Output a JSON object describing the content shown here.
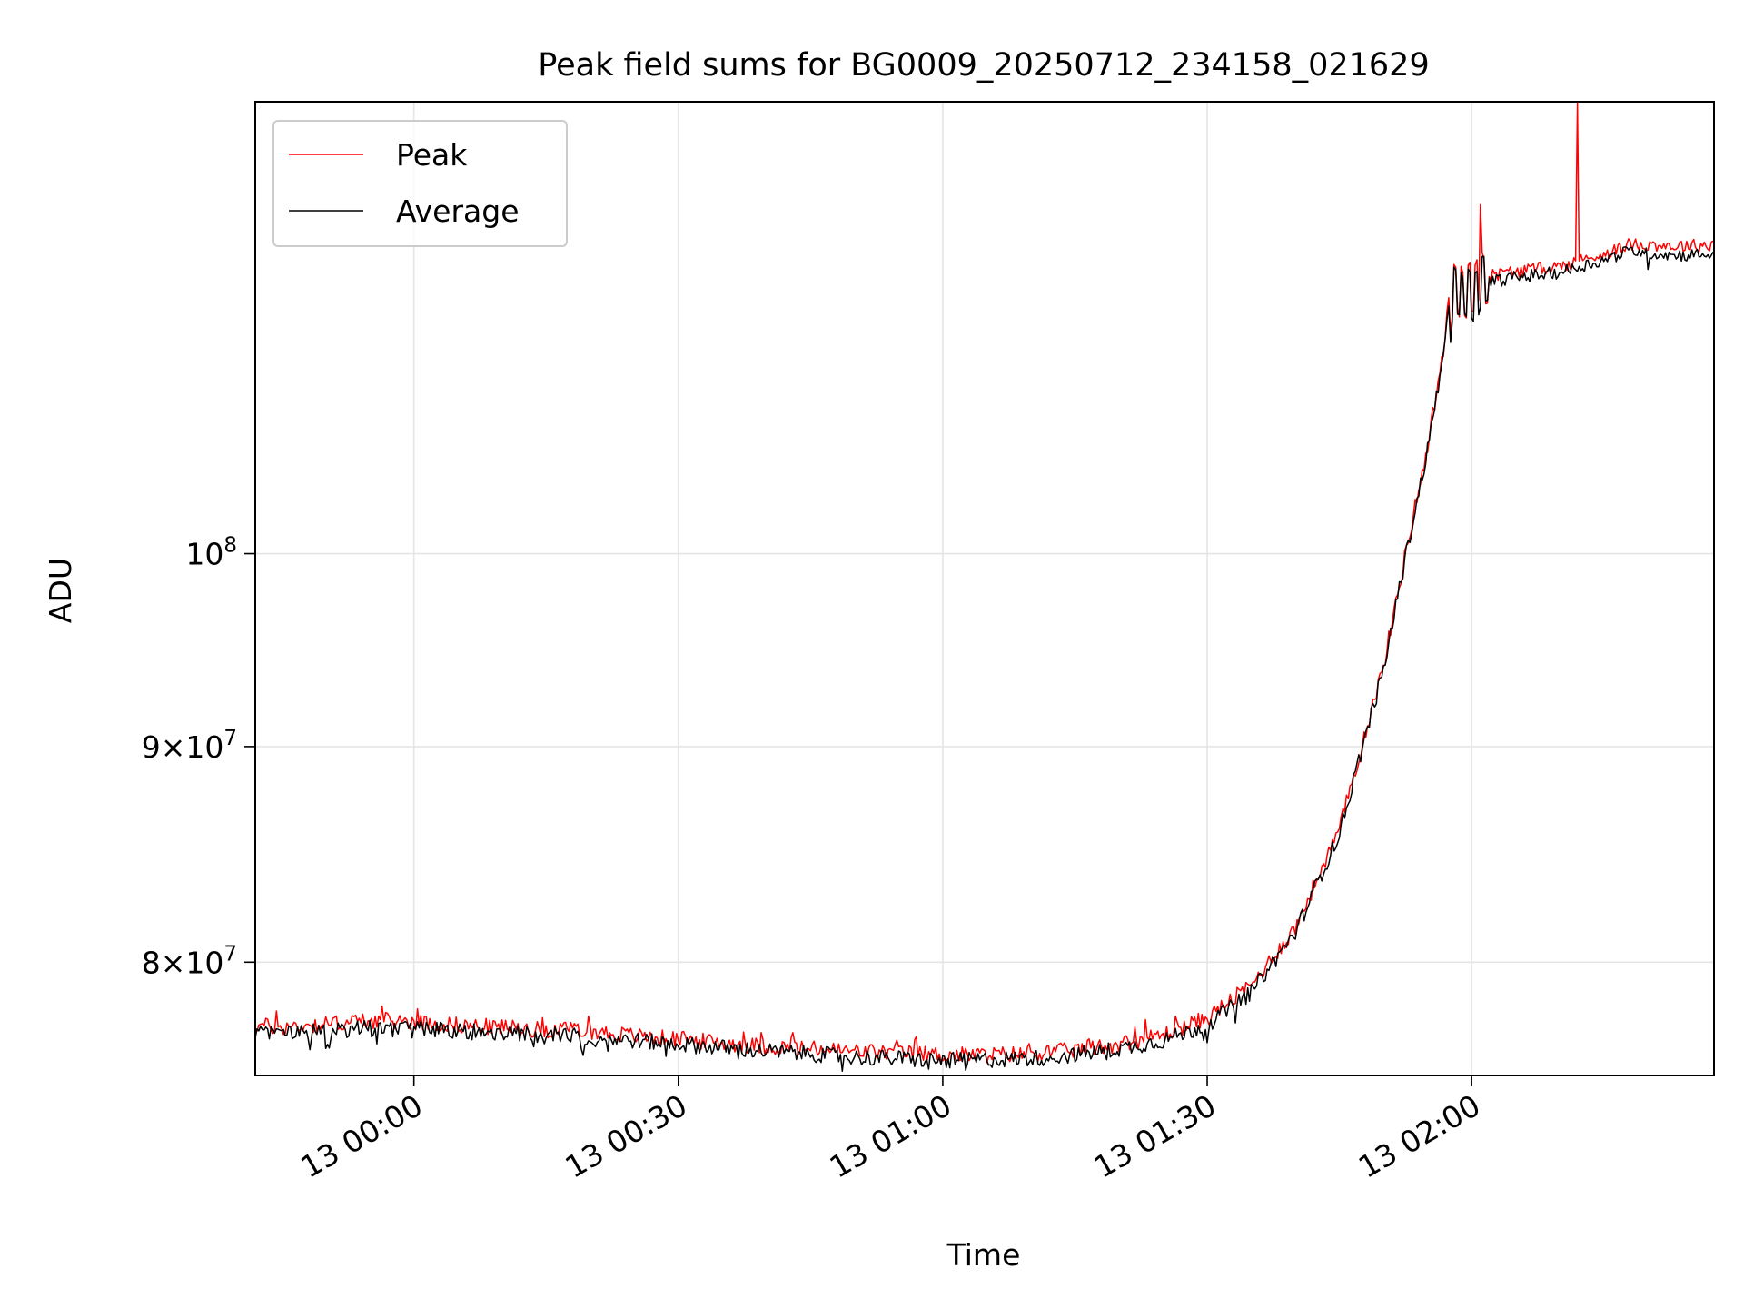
{
  "chart_data": {
    "type": "line",
    "title": "Peak field sums for BG0009_20250712_234158_021629",
    "xlabel": "Time",
    "ylabel": "ADU",
    "x_ticks": [
      "13 00:00",
      "13 00:30",
      "13 01:00",
      "13 01:30",
      "13 02:00"
    ],
    "y_ticks": [
      {
        "value": 80000000,
        "mantissa": "8",
        "exp": "7"
      },
      {
        "value": 90000000,
        "mantissa": "9",
        "exp": "7"
      },
      {
        "value": 100000000,
        "mantissa": "",
        "exp": "8"
      }
    ],
    "y_scale": "log",
    "ylim": [
      75200000,
      128000000
    ],
    "xlim": [
      "2025-07-12 23:42:00",
      "2025-07-13 02:27:30"
    ],
    "grid": true,
    "legend_position": "upper-left",
    "series": [
      {
        "name": "Peak",
        "color": "#ff0000",
        "points": [
          [
            "2025-07-12 23:42:00",
            77300000
          ],
          [
            "2025-07-12 23:45:00",
            77200000
          ],
          [
            "2025-07-12 23:50:00",
            77350000
          ],
          [
            "2025-07-12 23:55:00",
            77500000
          ],
          [
            "2025-07-13 00:00:00",
            77450000
          ],
          [
            "2025-07-13 00:05:00",
            77300000
          ],
          [
            "2025-07-13 00:10:00",
            77200000
          ],
          [
            "2025-07-13 00:15:00",
            77100000
          ],
          [
            "2025-07-13 00:20:00",
            77050000
          ],
          [
            "2025-07-13 00:25:00",
            76850000
          ],
          [
            "2025-07-13 00:30:00",
            76700000
          ],
          [
            "2025-07-13 00:35:00",
            76550000
          ],
          [
            "2025-07-13 00:40:00",
            76400000
          ],
          [
            "2025-07-13 00:45:00",
            76300000
          ],
          [
            "2025-07-13 00:50:00",
            76200000
          ],
          [
            "2025-07-13 00:55:00",
            76150000
          ],
          [
            "2025-07-13 01:00:00",
            76050000
          ],
          [
            "2025-07-13 01:05:00",
            76050000
          ],
          [
            "2025-07-13 01:10:00",
            76100000
          ],
          [
            "2025-07-13 01:15:00",
            76250000
          ],
          [
            "2025-07-13 01:20:00",
            76500000
          ],
          [
            "2025-07-13 01:25:00",
            76900000
          ],
          [
            "2025-07-13 01:30:00",
            77600000
          ],
          [
            "2025-07-13 01:35:00",
            79000000
          ],
          [
            "2025-07-13 01:40:00",
            81500000
          ],
          [
            "2025-07-13 01:45:00",
            86000000
          ],
          [
            "2025-07-13 01:50:00",
            94000000
          ],
          [
            "2025-07-13 01:55:00",
            106000000
          ],
          [
            "2025-07-13 01:58:00",
            115500000
          ],
          [
            "2025-07-13 02:00:00",
            115500000
          ],
          [
            "2025-07-13 02:01:00",
            116300000
          ],
          [
            "2025-07-13 02:05:00",
            116700000
          ],
          [
            "2025-07-13 02:10:00",
            117000000
          ],
          [
            "2025-07-13 02:15:00",
            117800000
          ],
          [
            "2025-07-13 02:18:00",
            118400000
          ],
          [
            "2025-07-13 02:20:00",
            118400000
          ],
          [
            "2025-07-13 02:23:00",
            118300000
          ],
          [
            "2025-07-13 02:27:30",
            118400000
          ]
        ],
        "spikes": [
          [
            "2025-07-13 02:01:00",
            121000000
          ],
          [
            "2025-07-13 02:12:00",
            128000000
          ]
        ]
      },
      {
        "name": "Average",
        "color": "#000000",
        "points": [
          [
            "2025-07-12 23:42:00",
            76950000
          ],
          [
            "2025-07-12 23:45:00",
            76950000
          ],
          [
            "2025-07-12 23:50:00",
            77050000
          ],
          [
            "2025-07-12 23:55:00",
            77150000
          ],
          [
            "2025-07-13 00:00:00",
            77150000
          ],
          [
            "2025-07-13 00:05:00",
            77050000
          ],
          [
            "2025-07-13 00:10:00",
            76950000
          ],
          [
            "2025-07-13 00:15:00",
            76900000
          ],
          [
            "2025-07-13 00:20:00",
            76800000
          ],
          [
            "2025-07-13 00:25:00",
            76650000
          ],
          [
            "2025-07-13 00:30:00",
            76500000
          ],
          [
            "2025-07-13 00:35:00",
            76350000
          ],
          [
            "2025-07-13 00:40:00",
            76200000
          ],
          [
            "2025-07-13 00:45:00",
            76100000
          ],
          [
            "2025-07-13 00:50:00",
            75950000
          ],
          [
            "2025-07-13 00:55:00",
            75900000
          ],
          [
            "2025-07-13 01:00:00",
            75800000
          ],
          [
            "2025-07-13 01:05:00",
            75850000
          ],
          [
            "2025-07-13 01:10:00",
            75900000
          ],
          [
            "2025-07-13 01:15:00",
            76050000
          ],
          [
            "2025-07-13 01:20:00",
            76300000
          ],
          [
            "2025-07-13 01:25:00",
            76650000
          ],
          [
            "2025-07-13 01:30:00",
            77300000
          ],
          [
            "2025-07-13 01:35:00",
            78700000
          ],
          [
            "2025-07-13 01:40:00",
            81300000
          ],
          [
            "2025-07-13 01:45:00",
            85800000
          ],
          [
            "2025-07-13 01:50:00",
            93800000
          ],
          [
            "2025-07-13 01:55:00",
            105800000
          ],
          [
            "2025-07-13 01:58:00",
            115200000
          ],
          [
            "2025-07-13 02:00:00",
            115000000
          ],
          [
            "2025-07-13 02:01:00",
            115900000
          ],
          [
            "2025-07-13 02:05:00",
            116300000
          ],
          [
            "2025-07-13 02:10:00",
            116600000
          ],
          [
            "2025-07-13 02:15:00",
            117400000
          ],
          [
            "2025-07-13 02:18:00",
            118000000
          ],
          [
            "2025-07-13 02:20:00",
            117900000
          ],
          [
            "2025-07-13 02:23:00",
            117700000
          ],
          [
            "2025-07-13 02:27:30",
            117800000
          ]
        ],
        "spikes": [
          [
            "2025-07-13 02:20:00",
            116800000
          ]
        ]
      }
    ]
  }
}
